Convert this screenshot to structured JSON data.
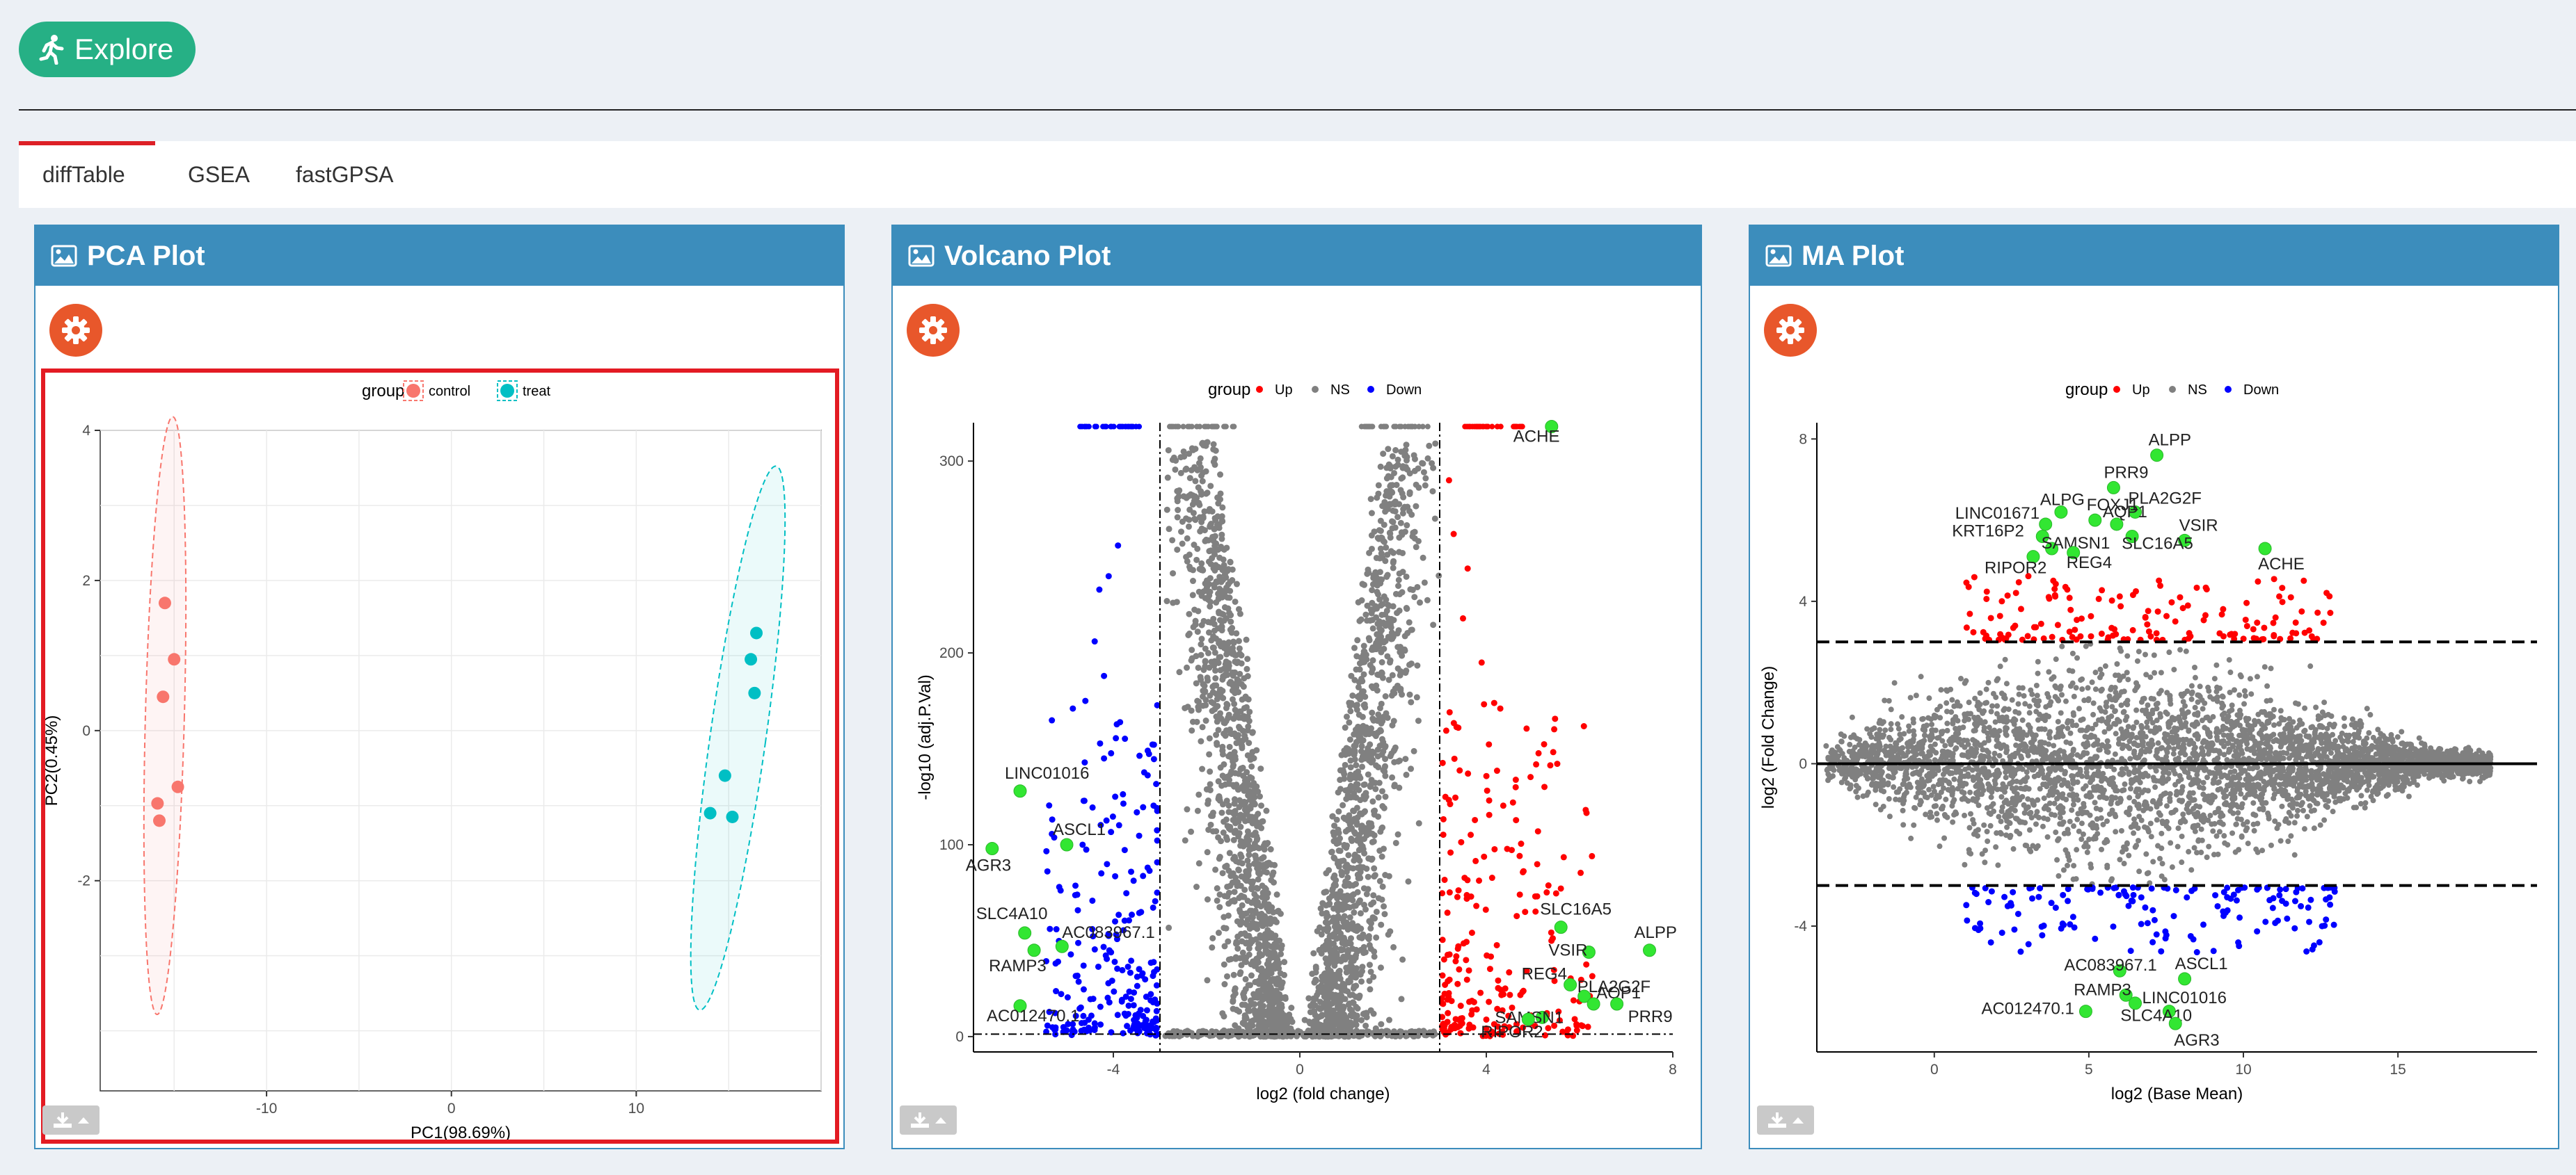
{
  "explore": {
    "label": "Explore"
  },
  "tabs": [
    {
      "label": "diffTable"
    },
    {
      "label": "GSEA"
    },
    {
      "label": "fastGPSA"
    }
  ],
  "panels": {
    "pca": {
      "title": "PCA Plot"
    },
    "volcano": {
      "title": "Volcano Plot"
    },
    "ma": {
      "title": "MA Plot"
    }
  },
  "colors": {
    "header": "#3c8dbc",
    "gear": "#e8572b",
    "explore": "#26b085",
    "control": "#f8766d",
    "treat": "#00bfc4",
    "up": "#ff0000",
    "ns": "#808080",
    "down": "#0000ff",
    "highlight_label": "#32e632"
  },
  "chart_data": [
    {
      "type": "scatter",
      "name": "pca",
      "legend_title": "group",
      "legend_position": "top",
      "xlabel": "PC1(98.69%)",
      "ylabel": "PC2(0.45%)",
      "xlim": [
        -19,
        20
      ],
      "ylim": [
        -4.8,
        4
      ],
      "xticks": [
        -10,
        0,
        10
      ],
      "yticks": [
        -2,
        0,
        2,
        4
      ],
      "grid": true,
      "series": [
        {
          "name": "control",
          "points": [
            [
              -15.5,
              1.7
            ],
            [
              -15.0,
              0.95
            ],
            [
              -15.6,
              0.45
            ],
            [
              -14.8,
              -0.75
            ],
            [
              -15.9,
              -0.97
            ],
            [
              -15.8,
              -1.2
            ]
          ]
        },
        {
          "name": "treat",
          "points": [
            [
              16.5,
              1.3
            ],
            [
              16.2,
              0.95
            ],
            [
              16.4,
              0.5
            ],
            [
              14.8,
              -0.6
            ],
            [
              15.2,
              -1.15
            ],
            [
              14.0,
              -1.1
            ]
          ]
        }
      ]
    },
    {
      "type": "scatter",
      "name": "volcano",
      "legend_title": "group",
      "legend_position": "top",
      "xlabel": "log2 (fold change)",
      "ylabel": "-log10 (adj.P.Val)",
      "xlim": [
        -7,
        8
      ],
      "ylim": [
        -8,
        320
      ],
      "xticks": [
        -4,
        0,
        4,
        8
      ],
      "yticks": [
        0,
        100,
        200,
        300
      ],
      "thresholds": {
        "x": [
          -3,
          3
        ],
        "y": 1.3
      },
      "series": [
        {
          "name": "Up"
        },
        {
          "name": "NS"
        },
        {
          "name": "Down"
        }
      ],
      "labeled_points": [
        {
          "label": "ACHE",
          "x": 5.4,
          "y": 318
        },
        {
          "label": "LINC01016",
          "x": -6.0,
          "y": 128
        },
        {
          "label": "ASCL1",
          "x": -5.0,
          "y": 100
        },
        {
          "label": "AGR3",
          "x": -6.6,
          "y": 98
        },
        {
          "label": "SLC4A10",
          "x": -5.9,
          "y": 54
        },
        {
          "label": "AC083967.1",
          "x": -5.1,
          "y": 47
        },
        {
          "label": "RAMP3",
          "x": -5.7,
          "y": 45
        },
        {
          "label": "AC012470.1",
          "x": -6.0,
          "y": 16
        },
        {
          "label": "SLC16A5",
          "x": 5.6,
          "y": 57
        },
        {
          "label": "ALPP",
          "x": 7.5,
          "y": 45
        },
        {
          "label": "VSIR",
          "x": 6.2,
          "y": 44
        },
        {
          "label": "REG4",
          "x": 5.8,
          "y": 27
        },
        {
          "label": "PLA2G2F",
          "x": 6.1,
          "y": 21
        },
        {
          "label": "AQP1",
          "x": 6.3,
          "y": 17
        },
        {
          "label": "PRR9",
          "x": 6.8,
          "y": 17
        },
        {
          "label": "SAMSN1",
          "x": 5.2,
          "y": 10
        },
        {
          "label": "RIPOR2",
          "x": 4.9,
          "y": 9
        }
      ]
    },
    {
      "type": "scatter",
      "name": "ma",
      "legend_title": "group",
      "legend_position": "top",
      "xlabel": "log2 (Base Mean)",
      "ylabel": "log2 (Fold Change)",
      "xlim": [
        -3.8,
        19.5
      ],
      "ylim": [
        -7.1,
        8.4
      ],
      "xticks": [
        0,
        5,
        10,
        15
      ],
      "yticks": [
        -4,
        0,
        4,
        8
      ],
      "thresholds": {
        "y": [
          -3,
          3
        ]
      },
      "series": [
        {
          "name": "Up"
        },
        {
          "name": "NS"
        },
        {
          "name": "Down"
        }
      ],
      "labeled_points": [
        {
          "label": "ALPP",
          "x": 7.2,
          "y": 7.6
        },
        {
          "label": "PRR9",
          "x": 5.8,
          "y": 6.8
        },
        {
          "label": "ALPG",
          "x": 4.1,
          "y": 6.2
        },
        {
          "label": "PLA2G2F",
          "x": 6.5,
          "y": 6.2
        },
        {
          "label": "FOXJ1",
          "x": 5.2,
          "y": 6.0
        },
        {
          "label": "AQP1",
          "x": 5.9,
          "y": 5.9
        },
        {
          "label": "LINC01671",
          "x": 3.6,
          "y": 5.9
        },
        {
          "label": "VSIR",
          "x": 8.1,
          "y": 5.5
        },
        {
          "label": "KRT16P2",
          "x": 3.5,
          "y": 5.6
        },
        {
          "label": "SAMSN1",
          "x": 3.8,
          "y": 5.3
        },
        {
          "label": "SLC16A5",
          "x": 6.4,
          "y": 5.6
        },
        {
          "label": "ACHE",
          "x": 10.7,
          "y": 5.3
        },
        {
          "label": "RIPOR2",
          "x": 3.2,
          "y": 5.1
        },
        {
          "label": "REG4",
          "x": 4.5,
          "y": 5.2
        },
        {
          "label": "AC083967.1",
          "x": 6.0,
          "y": -5.1
        },
        {
          "label": "ASCL1",
          "x": 8.1,
          "y": -5.3
        },
        {
          "label": "RAMP3",
          "x": 6.2,
          "y": -5.7
        },
        {
          "label": "LINC01016",
          "x": 6.5,
          "y": -5.9
        },
        {
          "label": "AC012470.1",
          "x": 4.9,
          "y": -6.1
        },
        {
          "label": "SLC4A10",
          "x": 7.6,
          "y": -6.1
        },
        {
          "label": "AGR3",
          "x": 7.8,
          "y": -6.4
        }
      ]
    }
  ]
}
